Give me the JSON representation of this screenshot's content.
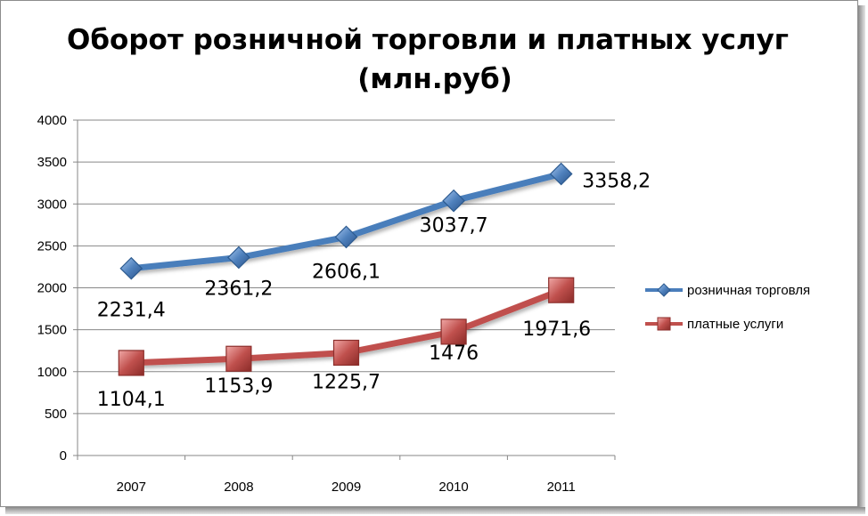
{
  "chart_data": {
    "type": "line",
    "title_line1": "Оборот розничной торговли и платных услуг",
    "title_line2": "(млн.руб)",
    "categories": [
      "2007",
      "2008",
      "2009",
      "2010",
      "2011"
    ],
    "ylim": [
      0,
      4000
    ],
    "yticks": [
      "0",
      "500",
      "1000",
      "1500",
      "2000",
      "2500",
      "3000",
      "3500",
      "4000"
    ],
    "grid": true,
    "legend_position": "right",
    "series": [
      {
        "name": "розничная торговля",
        "values": [
          2231.4,
          2361.2,
          2606.1,
          3037.7,
          3358.2
        ],
        "labels": [
          "2231,4",
          "2361,2",
          "2606,1",
          "3037,7",
          "3358,2"
        ],
        "color": "#4a7ebb",
        "marker": "diamond"
      },
      {
        "name": "платные услуги",
        "values": [
          1104.1,
          1153.9,
          1225.7,
          1476,
          1971.6
        ],
        "labels": [
          "1104,1",
          "1153,9",
          "1225,7",
          "1476",
          "1971,6"
        ],
        "color": "#c0504d",
        "marker": "square"
      }
    ]
  }
}
